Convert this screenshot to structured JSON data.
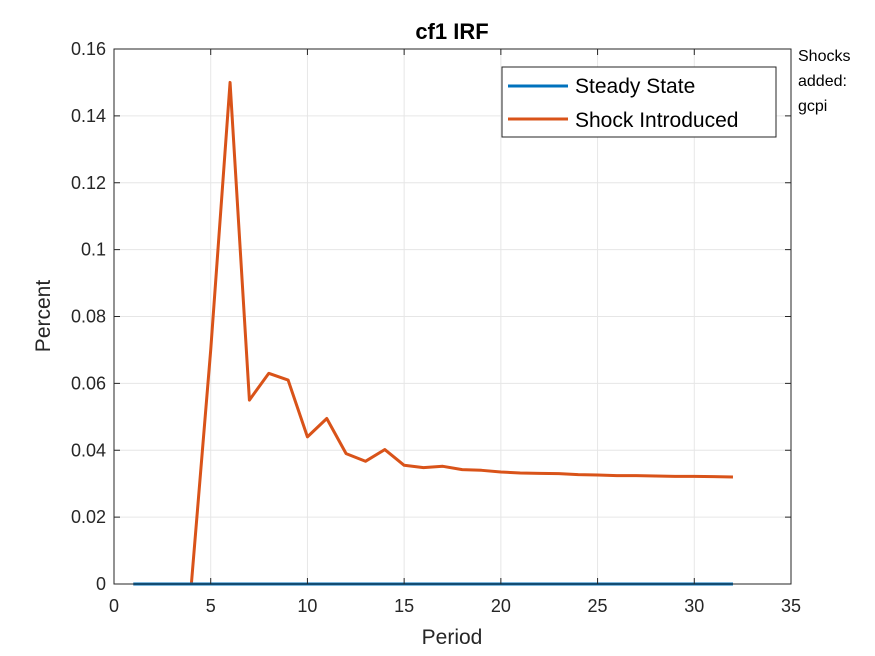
{
  "chart_data": {
    "type": "line",
    "title": "cf1 IRF",
    "xlabel": "Period",
    "ylabel": "Percent",
    "xlim": [
      0,
      35
    ],
    "ylim": [
      0,
      0.16
    ],
    "xticks": [
      0,
      5,
      10,
      15,
      20,
      25,
      30,
      35
    ],
    "yticks": [
      0,
      0.02,
      0.04,
      0.06,
      0.08,
      0.1,
      0.12,
      0.14,
      0.16
    ],
    "xtick_labels": [
      "0",
      "5",
      "10",
      "15",
      "20",
      "25",
      "30",
      "35"
    ],
    "ytick_labels": [
      "0",
      "0.02",
      "0.04",
      "0.06",
      "0.08",
      "0.1",
      "0.12",
      "0.14",
      "0.16"
    ],
    "grid": true,
    "legend_position": "top-right",
    "x": [
      1,
      2,
      3,
      4,
      5,
      6,
      7,
      8,
      9,
      10,
      11,
      12,
      13,
      14,
      15,
      16,
      17,
      18,
      19,
      20,
      21,
      22,
      23,
      24,
      25,
      26,
      27,
      28,
      29,
      30,
      31,
      32
    ],
    "series": [
      {
        "name": "Steady State",
        "color": "#0072BD",
        "values": [
          0,
          0,
          0,
          0,
          0,
          0,
          0,
          0,
          0,
          0,
          0,
          0,
          0,
          0,
          0,
          0,
          0,
          0,
          0,
          0,
          0,
          0,
          0,
          0,
          0,
          0,
          0,
          0,
          0,
          0,
          0,
          0
        ]
      },
      {
        "name": "Shock Introduced",
        "color": "#D95319",
        "values": [
          0,
          0,
          0,
          0,
          0.07,
          0.15,
          0.055,
          0.063,
          0.061,
          0.044,
          0.0495,
          0.039,
          0.0367,
          0.0402,
          0.0355,
          0.0348,
          0.0352,
          0.0342,
          0.034,
          0.0335,
          0.0332,
          0.0331,
          0.033,
          0.0327,
          0.0326,
          0.0324,
          0.0324,
          0.0323,
          0.0322,
          0.0322,
          0.0321,
          0.032
        ]
      }
    ],
    "annotation": [
      "Shocks",
      "added:",
      "gcpi"
    ]
  }
}
